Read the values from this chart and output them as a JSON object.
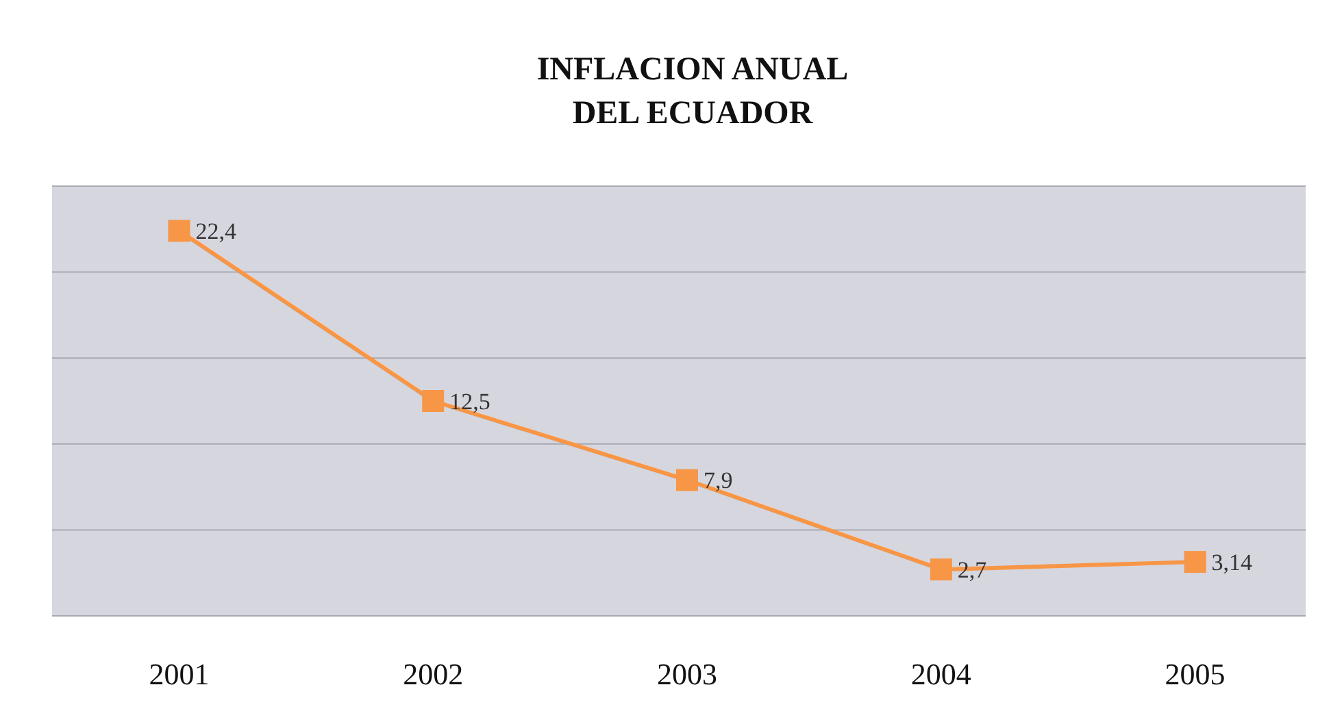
{
  "chart_data": {
    "type": "line",
    "title": "INFLACION ANUAL\nDEL ECUADOR",
    "categories": [
      "2001",
      "2002",
      "2003",
      "2004",
      "2005"
    ],
    "series": [
      {
        "color": "#f79646",
        "values": [
          22.4,
          12.5,
          7.9,
          2.7,
          3.14
        ],
        "value_labels": [
          "22,4",
          "12,5",
          "7,9",
          "2,7",
          "3,14"
        ]
      }
    ],
    "ylim": [
      0,
      25
    ],
    "yticks": [
      {
        "value": 0,
        "label": null
      },
      {
        "value": 5,
        "label": null
      },
      {
        "value": 10,
        "label": null
      },
      {
        "value": 15,
        "label": null
      },
      {
        "value": 20,
        "label": null
      },
      {
        "value": 25,
        "label": null
      }
    ],
    "tick_labels": "x",
    "grid": "y",
    "marker": "square",
    "line_style": "solid"
  }
}
